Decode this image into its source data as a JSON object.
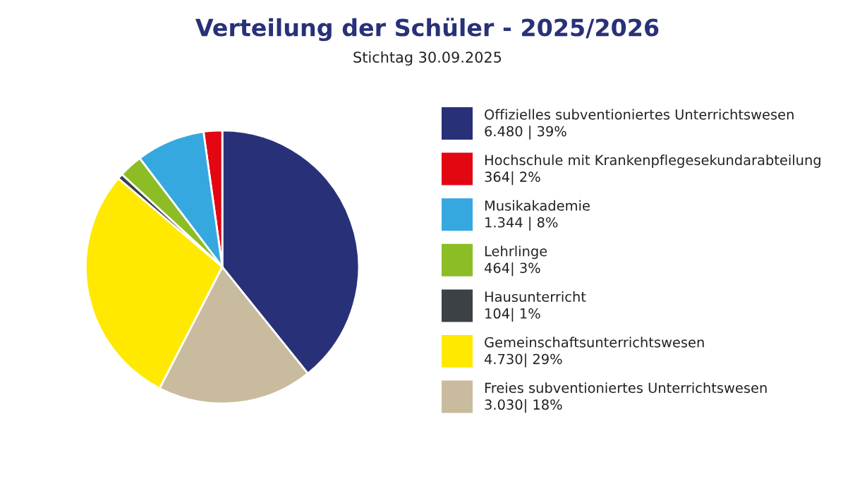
{
  "chart_data": {
    "type": "pie",
    "title": "Verteilung der Schüler - 2025/2026",
    "subtitle": "Stichtag 30.09.2025",
    "categories": [
      "Offizielles subventioniertes Unterrichtswesen",
      "Hochschule mit Krankenpflegesekundarabteilung",
      "Musikakademie",
      "Lehrlinge",
      "Hausunterricht",
      "Gemeinschaftsunterrichtswesen",
      "Freies subventioniertes Unterrichtswesen"
    ],
    "values": [
      6480,
      364,
      1344,
      464,
      104,
      4730,
      3030
    ],
    "value_labels": [
      "6.480 | 39%",
      "364| 2%",
      "1.344 | 8%",
      "464| 3%",
      "104| 1%",
      "4.730| 29%",
      "3.030| 18%"
    ],
    "colors": [
      "#283178",
      "#e30613",
      "#35a8e0",
      "#8cbd25",
      "#3c4145",
      "#ffe900",
      "#c9bb9e"
    ],
    "legend": "right"
  }
}
